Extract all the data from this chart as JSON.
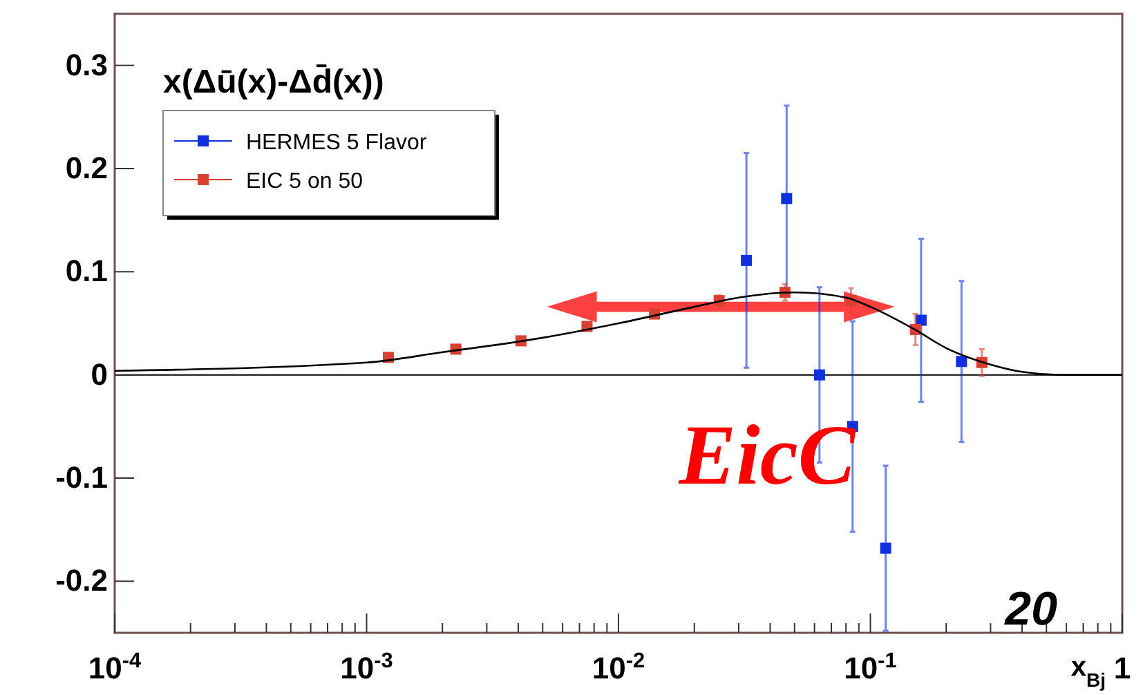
{
  "chart_data": {
    "type": "scatter",
    "title": "x(Δū(x)-Δd̄(x))",
    "xlabel": "x$_{Bj}$",
    "log": "x",
    "xlim": [
      0.0001,
      1
    ],
    "ylim": [
      -0.25,
      0.35
    ],
    "xticks": [
      {
        "value": 0.0001,
        "label": "10$^{-4}$"
      },
      {
        "value": 0.001,
        "label": "10$^{-3}$"
      },
      {
        "value": 0.01,
        "label": "10$^{-2}$"
      },
      {
        "value": 0.1,
        "label": "10$^{-1}$"
      },
      1
    ],
    "yticks": [
      -0.2,
      -0.1,
      0,
      0.1,
      0.2,
      0.3
    ],
    "grid": false,
    "legend": "top left",
    "marker": "square",
    "ref_lines": [
      {
        "axis": "y",
        "value": 0,
        "color": "#000000"
      }
    ],
    "annotations": [
      "EicC",
      "20"
    ],
    "series": [
      {
        "name": "HERMES 5 Flavor",
        "color": "#1030e0",
        "x": [
          0.0322,
          0.0465,
          0.0628,
          0.085,
          0.115,
          0.159,
          0.23
        ],
        "values": [
          0.111,
          0.171,
          0,
          -0.05,
          -0.168,
          0.053,
          0.013
        ],
        "errors": [
          0.104,
          0.09,
          0.085,
          0.102,
          0.08,
          0.079,
          0.078
        ]
      },
      {
        "name": "EIC 5 on 50",
        "color": "#d84030",
        "x": [
          0.00122,
          0.00226,
          0.0041,
          0.0075,
          0.0139,
          0.0251,
          0.0458,
          0.0838,
          0.151,
          0.277
        ],
        "values": [
          0.017,
          0.025,
          0.033,
          0.047,
          0.059,
          0.072,
          0.08,
          0.072,
          0.044,
          0.012
        ],
        "errors": [
          0.002,
          0.002,
          0.002,
          0.002,
          0.003,
          0.005,
          0.008,
          0.012,
          0.015,
          0.013
        ]
      },
      {
        "type": "line",
        "color": "#000000",
        "marker": "none",
        "x": [
          0.0001,
          0.001,
          0.002,
          0.005,
          0.01,
          0.02,
          0.03,
          0.05,
          0.08,
          0.1,
          0.15,
          0.2,
          0.3,
          0.4,
          0.6,
          1
        ],
        "values": [
          0.004,
          0.012,
          0.022,
          0.036,
          0.05,
          0.066,
          0.075,
          0.08,
          0.075,
          0.066,
          0.044,
          0.026,
          0.01,
          0.003,
          0,
          0
        ]
      }
    ]
  }
}
